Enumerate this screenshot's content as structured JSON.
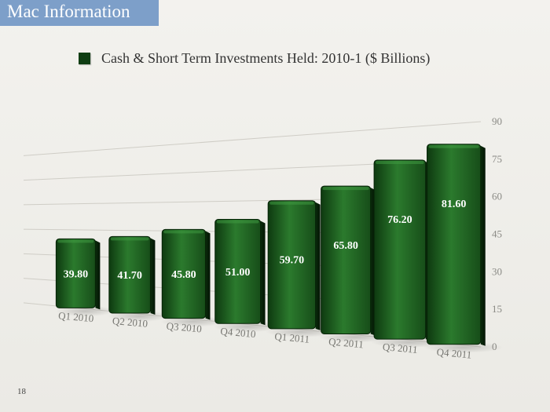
{
  "slide": {
    "title": "Mac Information",
    "page_number": "18"
  },
  "colors": {
    "title_band": "#7d9fc9",
    "bar": "#1c5a1e",
    "legend_swatch": "#0f3d12"
  },
  "chart_data": {
    "type": "bar",
    "title": "",
    "legend": [
      "Cash & Short Term Investments Held: 2010-1 ($ Billions)"
    ],
    "legend_position": "top",
    "categories": [
      "Q1 2010",
      "Q2 2010",
      "Q3 2010",
      "Q4 2010",
      "Q1 2011",
      "Q2 2011",
      "Q3 2011",
      "Q4 2011"
    ],
    "values": [
      39.8,
      41.7,
      45.8,
      51.0,
      59.7,
      65.8,
      76.2,
      81.6
    ],
    "value_labels": [
      "39.80",
      "41.70",
      "45.80",
      "51.00",
      "59.70",
      "65.80",
      "76.20",
      "81.60"
    ],
    "xlabel": "",
    "ylabel": "",
    "ylim": [
      0,
      90
    ],
    "yticks": [
      "0",
      "15",
      "30",
      "45",
      "60",
      "75",
      "90"
    ],
    "y_axis_side": "right",
    "grid": true
  }
}
